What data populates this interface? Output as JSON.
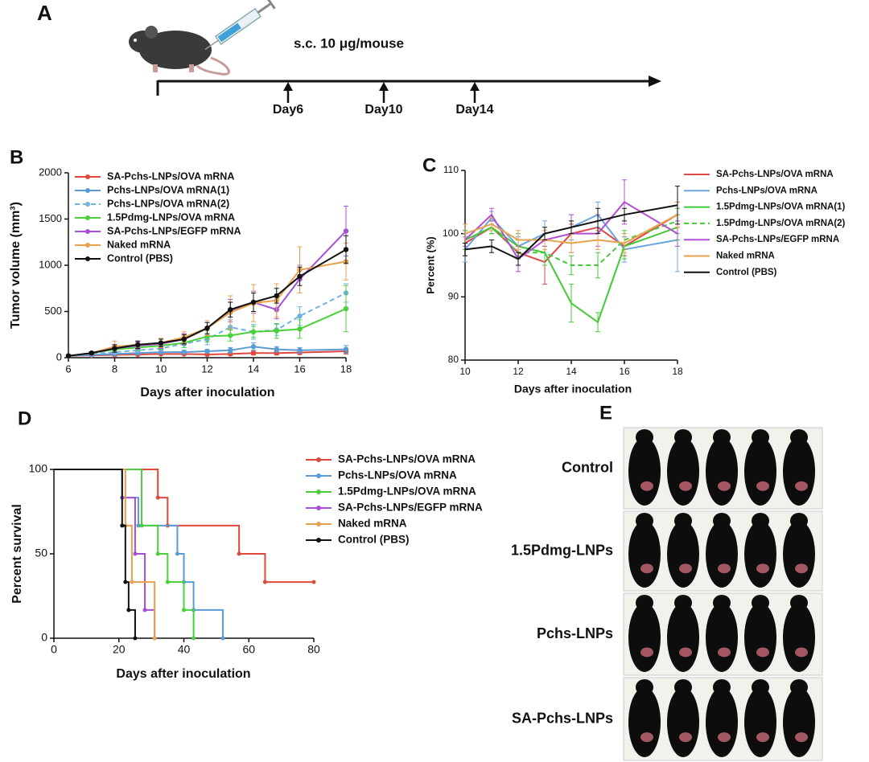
{
  "panel_a": {
    "label": "A",
    "dose": "s.c. 10 μg/mouse",
    "days": [
      "Day6",
      "Day10",
      "Day14"
    ]
  },
  "panel_e": {
    "label": "E",
    "rows": [
      "Control",
      "1.5Pdmg-LNPs",
      "Pchs-LNPs",
      "SA-Pchs-LNPs"
    ]
  },
  "chart_data": [
    {
      "type": "line",
      "panel": "B",
      "x_label": "Days after inoculation",
      "y_label": "Tumor volume (mm³)",
      "x": [
        6,
        7,
        8,
        9,
        10,
        11,
        12,
        13,
        14,
        15,
        16,
        18
      ],
      "xlim": [
        6,
        18
      ],
      "xticks": [
        6,
        8,
        10,
        12,
        14,
        16,
        18
      ],
      "ylim": [
        0,
        2000
      ],
      "yticks": [
        0,
        500,
        1000,
        1500,
        2000
      ],
      "legend": "upper left",
      "markers": true,
      "series": [
        {
          "name": "SA-Pchs-LNPs/OVA mRNA",
          "color": "#e0483c",
          "values": [
            20,
            25,
            30,
            35,
            40,
            40,
            35,
            40,
            50,
            50,
            55,
            70
          ],
          "errors": [
            5,
            5,
            10,
            10,
            10,
            10,
            10,
            15,
            20,
            20,
            20,
            30
          ]
        },
        {
          "name": "Pchs-LNPs/OVA mRNA(1)",
          "color": "#5b9bd5",
          "values": [
            20,
            30,
            40,
            50,
            60,
            60,
            70,
            80,
            120,
            90,
            80,
            90
          ],
          "errors": [
            5,
            10,
            15,
            15,
            20,
            20,
            20,
            30,
            40,
            30,
            30,
            40
          ]
        },
        {
          "name": "Pchs-LNPs/OVA mRNA(2)",
          "color": "#6fb3e0",
          "dash": true,
          "values": [
            20,
            40,
            60,
            80,
            100,
            150,
            200,
            330,
            280,
            300,
            450,
            700
          ],
          "errors": [
            5,
            10,
            20,
            20,
            30,
            40,
            60,
            80,
            80,
            60,
            100,
            100
          ]
        },
        {
          "name": "1.5Pdmg-LNPs/OVA mRNA",
          "color": "#4ad13a",
          "values": [
            20,
            50,
            90,
            110,
            130,
            160,
            230,
            240,
            280,
            290,
            310,
            530
          ],
          "errors": [
            5,
            15,
            30,
            30,
            40,
            50,
            60,
            60,
            60,
            80,
            100,
            250
          ]
        },
        {
          "name": "SA-Pchs-LNPs/EGFP mRNA",
          "color": "#a64fd6",
          "values": [
            20,
            50,
            100,
            130,
            150,
            200,
            320,
            510,
            600,
            520,
            850,
            1370
          ],
          "errors": [
            5,
            15,
            40,
            40,
            50,
            60,
            80,
            120,
            120,
            100,
            150,
            270
          ]
        },
        {
          "name": "Naked mRNA",
          "color": "#e8a04a",
          "values": [
            20,
            50,
            120,
            140,
            160,
            220,
            320,
            490,
            590,
            620,
            950,
            1040
          ],
          "errors": [
            5,
            15,
            60,
            40,
            50,
            60,
            80,
            180,
            200,
            180,
            250,
            200
          ]
        },
        {
          "name": "Control (PBS)",
          "color": "#111111",
          "values": [
            20,
            50,
            100,
            140,
            160,
            200,
            320,
            520,
            600,
            670,
            880,
            1170
          ],
          "errors": [
            5,
            15,
            40,
            40,
            40,
            50,
            60,
            80,
            100,
            80,
            100,
            150
          ]
        }
      ]
    },
    {
      "type": "line",
      "panel": "C",
      "x_label": "Days after inoculation",
      "y_label": "Percent (%)",
      "x": [
        10,
        11,
        12,
        13,
        14,
        15,
        16,
        18
      ],
      "xlim": [
        10,
        18
      ],
      "xticks": [
        10,
        12,
        14,
        16,
        18
      ],
      "ylim": [
        80,
        110
      ],
      "yticks": [
        80,
        90,
        100,
        110
      ],
      "legend": "outside right",
      "markers": false,
      "series": [
        {
          "name": "SA-Pchs-LNPs/OVA mRNA",
          "color": "#e04848",
          "values": [
            98.5,
            101,
            97,
            95.5,
            100,
            101,
            98,
            103
          ],
          "errors": [
            1,
            1,
            2,
            3.5,
            1.5,
            2,
            1.5,
            2
          ]
        },
        {
          "name": "Pchs-LNPs/OVA mRNA",
          "color": "#6aa5e0",
          "values": [
            97.5,
            102.5,
            98,
            100,
            101,
            103,
            97.5,
            99
          ],
          "errors": [
            2,
            1,
            1.5,
            2,
            2,
            2,
            2,
            5
          ]
        },
        {
          "name": "1.5Pdmg-LNPs/OVA mRNA(1)",
          "color": "#43c938",
          "values": [
            99,
            101,
            98,
            97,
            89,
            86,
            98,
            101
          ],
          "errors": [
            1.5,
            1,
            2,
            2,
            3,
            1.5,
            2,
            2
          ]
        },
        {
          "name": "1.5Pdmg-LNPs/OVA mRNA(2)",
          "color": "#43c938",
          "dash": true,
          "values": [
            99,
            101,
            97,
            97,
            95,
            95,
            99,
            102
          ],
          "errors": [
            1.5,
            1,
            2,
            2,
            1.5,
            2,
            1.5,
            2
          ]
        },
        {
          "name": "SA-Pchs-LNPs/EGFP mRNA",
          "color": "#b34fd0",
          "values": [
            99,
            103,
            96,
            99,
            100,
            100,
            105,
            100
          ],
          "errors": [
            1,
            1,
            2,
            1,
            3,
            2,
            3.5,
            2
          ]
        },
        {
          "name": "Naked mRNA",
          "color": "#e8a24c",
          "values": [
            100,
            101.5,
            99,
            99,
            98.5,
            99,
            98.5,
            103
          ],
          "errors": [
            1.5,
            1,
            1.5,
            1.5,
            1.5,
            1.5,
            1.5,
            2
          ]
        },
        {
          "name": "Control (PBS)",
          "color": "#111111",
          "values": [
            97.5,
            98,
            96,
            100,
            101,
            102,
            103,
            104.5
          ],
          "errors": [
            1,
            1,
            1,
            1,
            1,
            2,
            1,
            3
          ]
        }
      ]
    },
    {
      "type": "step",
      "panel": "D",
      "x_label": "Days after inoculation",
      "y_label": "Percent survival",
      "xlim": [
        0,
        80
      ],
      "xticks": [
        0,
        20,
        40,
        60,
        80
      ],
      "ylim": [
        0,
        100
      ],
      "yticks": [
        0,
        50,
        100
      ],
      "legend": "outside right",
      "markers": true,
      "series": [
        {
          "name": "SA-Pchs-LNPs/OVA mRNA",
          "color": "#e0483c",
          "x": [
            0,
            32,
            35,
            57,
            65,
            80
          ],
          "values": [
            100,
            83.3,
            66.7,
            50,
            33.3,
            33.3
          ]
        },
        {
          "name": "Pchs-LNPs/OVA mRNA",
          "color": "#5b9bd5",
          "x": [
            0,
            21,
            26,
            38,
            40,
            43,
            52
          ],
          "values": [
            100,
            83.3,
            66.7,
            50,
            33.3,
            16.7,
            0
          ]
        },
        {
          "name": "1.5Pdmg-LNPs/OVA mRNA",
          "color": "#4ad13a",
          "x": [
            0,
            27,
            32,
            35,
            40,
            43
          ],
          "values": [
            100,
            66.7,
            50,
            33.3,
            16.7,
            0
          ]
        },
        {
          "name": "SA-Pchs-LNPs/EGFP mRNA",
          "color": "#a64fd6",
          "x": [
            0,
            21,
            25,
            28,
            31
          ],
          "values": [
            100,
            83.3,
            50,
            16.7,
            0
          ]
        },
        {
          "name": "Naked mRNA",
          "color": "#e8a04a",
          "x": [
            0,
            22,
            24,
            31
          ],
          "values": [
            100,
            66.7,
            33.3,
            0
          ]
        },
        {
          "name": "Control (PBS)",
          "color": "#111111",
          "x": [
            0,
            21,
            22,
            23,
            25
          ],
          "values": [
            100,
            66.7,
            33.3,
            16.7,
            0
          ]
        }
      ]
    }
  ]
}
